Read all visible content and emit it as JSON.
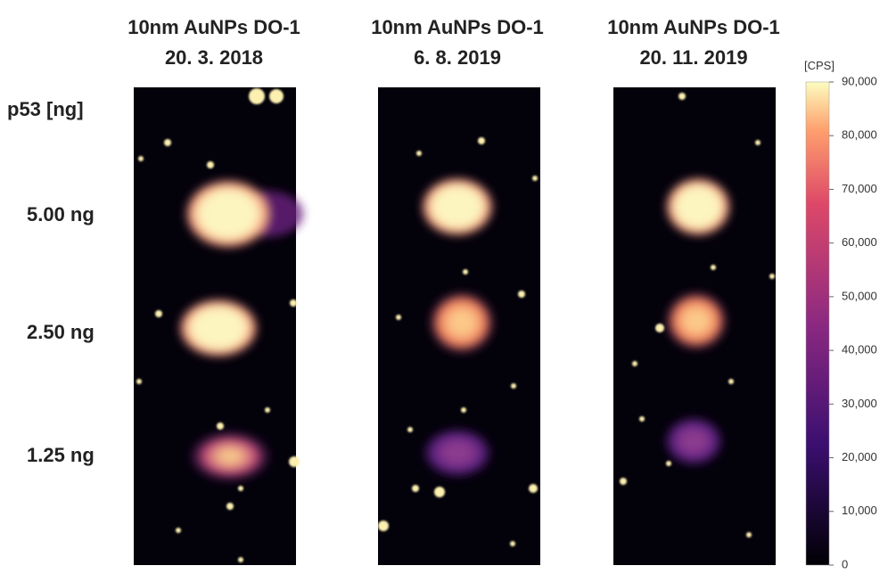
{
  "panels": [
    {
      "title": [
        "10nm AuNPs DO-1",
        "20. 3. 2018"
      ]
    },
    {
      "title": [
        "10nm AuNPs DO-1",
        "6. 8. 2019"
      ]
    },
    {
      "title": [
        "10nm AuNPs DO-1",
        "20. 11. 2019"
      ]
    }
  ],
  "row_header": "p53 [ng]",
  "row_labels": [
    "5.00 ng",
    "2.50 ng",
    "1.25 ng"
  ],
  "colorbar": {
    "unit": "[CPS]",
    "lim": [
      0,
      90000
    ],
    "ticks": [
      0,
      {
        "value": 10000,
        "label": "10,000"
      },
      {
        "value": 20000,
        "label": "20,000"
      },
      {
        "value": 30000,
        "label": "30,000"
      },
      {
        "value": 40000,
        "label": "40,000"
      },
      {
        "value": 50000,
        "label": "50,000"
      },
      {
        "value": 60000,
        "label": "60,000"
      },
      {
        "value": 70000,
        "label": "70,000"
      },
      {
        "value": 80000,
        "label": "80,000"
      },
      {
        "value": 90000,
        "label": "90,000"
      }
    ]
  }
}
